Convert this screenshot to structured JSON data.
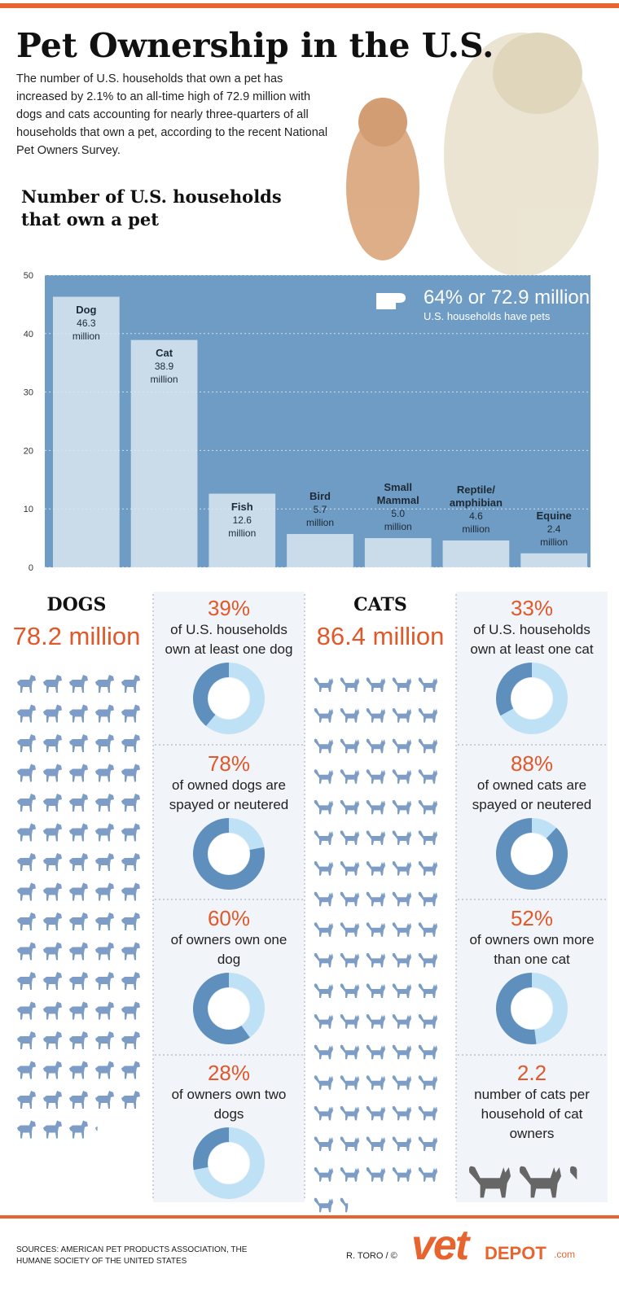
{
  "header": {
    "title": "Pet Ownership in the U.S.",
    "intro": "The number of U.S. households that own a pet has increased by 2.1% to an all-time high of 72.9 million with dogs and cats accounting for nearly three-quarters of all households that own a pet, according to the recent National Pet Owners Survey."
  },
  "chart_data": {
    "type": "bar",
    "title": "Number of U.S. households that own a pet",
    "categories": [
      "Dog",
      "Cat",
      "Fish",
      "Bird",
      "Small Mammal",
      "Reptile/ amphibian",
      "Equine"
    ],
    "values": [
      46.3,
      38.9,
      12.6,
      5.7,
      5.0,
      4.6,
      2.4
    ],
    "value_labels": [
      "46.3 million",
      "38.9 million",
      "12.6 million",
      "5.7 million",
      "5.0 million",
      "4.6 million",
      "2.4 million"
    ],
    "ylim": [
      0,
      50
    ],
    "yticks": [
      0,
      10,
      20,
      30,
      40,
      50
    ],
    "grid": true,
    "color": "#dbe7f1",
    "annotation": {
      "headline": "64% or 72.9 million",
      "text": "U.S. households have pets"
    }
  },
  "dogs": {
    "title": "DOGS",
    "total": {
      "value": 78.2,
      "label": "78.2 million"
    },
    "stats": [
      {
        "value": 39,
        "label": "39%",
        "text": "of U.S. households own at least one dog"
      },
      {
        "value": 78,
        "label": "78%",
        "text": "of owned dogs are spayed or neutered"
      },
      {
        "value": 60,
        "label": "60%",
        "text": "of owners own one dog"
      },
      {
        "value": 28,
        "label": "28%",
        "text": "of owners own two dogs"
      }
    ]
  },
  "cats": {
    "title": "CATS",
    "total": {
      "value": 86.4,
      "label": "86.4 million"
    },
    "stats": [
      {
        "value": 33,
        "label": "33%",
        "text": "of U.S. households own at least one cat"
      },
      {
        "value": 88,
        "label": "88%",
        "text": "of owned cats are spayed or neutered"
      },
      {
        "value": 52,
        "label": "52%",
        "text": "of owners own more than one cat"
      },
      {
        "value": 2.2,
        "text": "number of cats per household of cat owners"
      }
    ]
  },
  "footer": {
    "sources": "SOURCES: AMERICAN PET PRODUCTS ASSOCIATION, THE HUMANE SOCIETY OF THE UNITED STATES",
    "credit": "R. TORO / ©",
    "logo": {
      "main": "vet",
      "sub": "DEPOT",
      "suffix": ".com"
    }
  }
}
